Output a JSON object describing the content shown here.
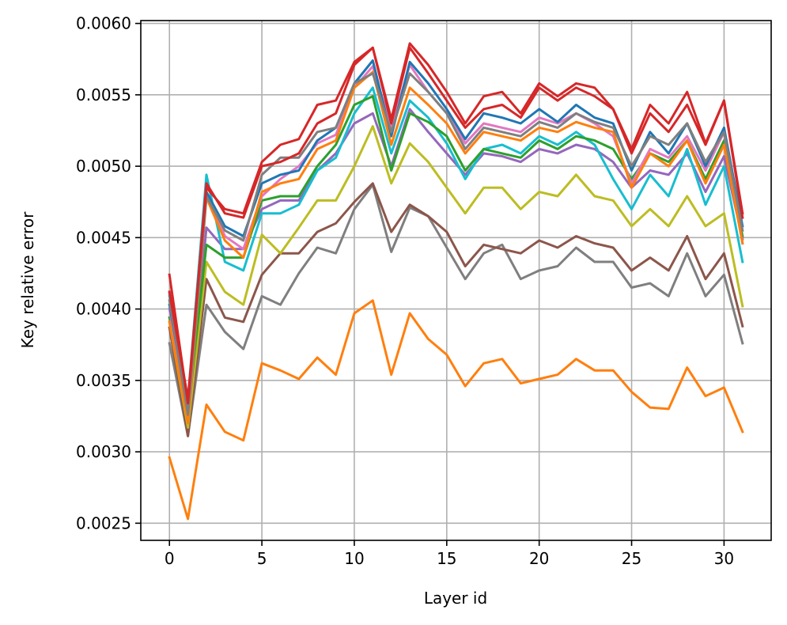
{
  "chart_data": {
    "type": "line",
    "xlabel": "Layer id",
    "ylabel": "Key relative error",
    "xlim": [
      -1.55,
      32.55
    ],
    "ylim": [
      0.00238,
      0.00602
    ],
    "xticks": [
      0,
      5,
      10,
      15,
      20,
      25,
      30
    ],
    "yticks": [
      0.0025,
      0.003,
      0.0035,
      0.004,
      0.0045,
      0.005,
      0.0055,
      0.006
    ],
    "ytick_labels": [
      "0.0025",
      "0.0030",
      "0.0035",
      "0.0040",
      "0.0045",
      "0.0050",
      "0.0055",
      "0.0060"
    ],
    "xtick_labels": [
      "0",
      "5",
      "10",
      "15",
      "20",
      "25",
      "30"
    ],
    "grid": true,
    "x": [
      0,
      1,
      2,
      3,
      4,
      5,
      6,
      7,
      8,
      9,
      10,
      11,
      12,
      13,
      14,
      15,
      16,
      17,
      18,
      19,
      20,
      21,
      22,
      23,
      24,
      25,
      26,
      27,
      28,
      29,
      30,
      31
    ],
    "series": [
      {
        "color": "#ff7f0e",
        "values": [
          0.00296,
          0.00253,
          0.00333,
          0.00314,
          0.00308,
          0.00362,
          0.00357,
          0.00351,
          0.00366,
          0.00354,
          0.00397,
          0.00406,
          0.00354,
          0.00397,
          0.00379,
          0.00368,
          0.00346,
          0.00362,
          0.00365,
          0.00348,
          0.00351,
          0.00354,
          0.00365,
          0.00357,
          0.00357,
          0.00342,
          0.00331,
          0.0033,
          0.00359,
          0.00339,
          0.00345,
          0.00314
        ]
      },
      {
        "color": "#7f7f7f",
        "values": [
          0.00376,
          0.00311,
          0.00403,
          0.00384,
          0.00372,
          0.00409,
          0.00403,
          0.00425,
          0.00443,
          0.00439,
          0.0047,
          0.00487,
          0.0044,
          0.00471,
          0.00465,
          0.00443,
          0.00421,
          0.00439,
          0.00445,
          0.00421,
          0.00427,
          0.0043,
          0.00443,
          0.00433,
          0.00433,
          0.00415,
          0.00418,
          0.00409,
          0.00439,
          0.00409,
          0.00424,
          0.00376
        ]
      },
      {
        "color": "#8c564b",
        "values": [
          0.00387,
          0.00311,
          0.00421,
          0.00394,
          0.00391,
          0.00424,
          0.00439,
          0.00439,
          0.00454,
          0.0046,
          0.00475,
          0.00488,
          0.00454,
          0.00473,
          0.00465,
          0.00454,
          0.0043,
          0.00445,
          0.00442,
          0.00439,
          0.00448,
          0.00443,
          0.00451,
          0.00446,
          0.00443,
          0.00427,
          0.00436,
          0.00427,
          0.00451,
          0.00421,
          0.00439,
          0.00388
        ]
      },
      {
        "color": "#bcbd22",
        "values": [
          0.00391,
          0.00317,
          0.00433,
          0.00412,
          0.00403,
          0.00452,
          0.00439,
          0.00457,
          0.00476,
          0.00476,
          0.005,
          0.00528,
          0.00488,
          0.00516,
          0.00503,
          0.00485,
          0.00467,
          0.00485,
          0.00485,
          0.0047,
          0.00482,
          0.00479,
          0.00494,
          0.00479,
          0.00476,
          0.00458,
          0.0047,
          0.00458,
          0.00479,
          0.00458,
          0.00467,
          0.00402
        ]
      },
      {
        "color": "#9467bd",
        "values": [
          0.00411,
          0.00322,
          0.00457,
          0.00442,
          0.00442,
          0.0047,
          0.00476,
          0.00476,
          0.00497,
          0.00509,
          0.0053,
          0.00537,
          0.005,
          0.0054,
          0.00524,
          0.00509,
          0.00494,
          0.00509,
          0.00507,
          0.00503,
          0.00512,
          0.00509,
          0.00515,
          0.00512,
          0.00503,
          0.00485,
          0.00497,
          0.00494,
          0.00509,
          0.00482,
          0.00507,
          0.00449
        ]
      },
      {
        "color": "#17becf",
        "values": [
          0.00409,
          0.00337,
          0.00494,
          0.00433,
          0.00427,
          0.00467,
          0.00467,
          0.00473,
          0.00497,
          0.00506,
          0.00537,
          0.00555,
          0.00509,
          0.00546,
          0.00534,
          0.00516,
          0.00491,
          0.00512,
          0.00515,
          0.00509,
          0.00521,
          0.00515,
          0.00524,
          0.00515,
          0.00491,
          0.0047,
          0.00494,
          0.00479,
          0.00512,
          0.00473,
          0.005,
          0.00433
        ]
      },
      {
        "color": "#2ca02c",
        "values": [
          0.00394,
          0.00328,
          0.00445,
          0.00436,
          0.00436,
          0.00476,
          0.00479,
          0.00479,
          0.005,
          0.00515,
          0.00543,
          0.00549,
          0.00497,
          0.00537,
          0.00531,
          0.00521,
          0.00497,
          0.00512,
          0.00509,
          0.00506,
          0.00518,
          0.00512,
          0.00521,
          0.00518,
          0.00512,
          0.00491,
          0.00509,
          0.00503,
          0.00518,
          0.00491,
          0.00518,
          0.00451
        ]
      },
      {
        "color": "#e377c2",
        "values": [
          0.004,
          0.00323,
          0.00482,
          0.00451,
          0.00442,
          0.00479,
          0.00491,
          0.005,
          0.00516,
          0.00522,
          0.00555,
          0.0057,
          0.00527,
          0.00571,
          0.00552,
          0.00537,
          0.00516,
          0.0053,
          0.00527,
          0.00524,
          0.00534,
          0.0053,
          0.00537,
          0.0053,
          0.00521,
          0.00488,
          0.00512,
          0.00506,
          0.00521,
          0.00497,
          0.00524,
          0.00446
        ]
      },
      {
        "color": "#1f77b4",
        "values": [
          0.00403,
          0.00329,
          0.00482,
          0.00458,
          0.00451,
          0.00488,
          0.00494,
          0.00497,
          0.00518,
          0.00527,
          0.00558,
          0.00574,
          0.00521,
          0.00573,
          0.00558,
          0.0054,
          0.00519,
          0.00537,
          0.00534,
          0.0053,
          0.0054,
          0.00531,
          0.00543,
          0.00534,
          0.0053,
          0.00497,
          0.00524,
          0.00509,
          0.0053,
          0.005,
          0.00527,
          0.00458
        ]
      },
      {
        "color": "#ff7f0e",
        "values": [
          0.00391,
          0.0032,
          0.00478,
          0.00448,
          0.00436,
          0.00482,
          0.00488,
          0.00491,
          0.00512,
          0.00518,
          0.00555,
          0.00566,
          0.00515,
          0.00555,
          0.00543,
          0.0053,
          0.00509,
          0.00524,
          0.00521,
          0.00518,
          0.00527,
          0.00524,
          0.00531,
          0.00527,
          0.00524,
          0.00485,
          0.00509,
          0.005,
          0.00518,
          0.00488,
          0.00515,
          0.00446
        ]
      },
      {
        "color": "#7f7f7f",
        "values": [
          0.00406,
          0.00326,
          0.00479,
          0.00455,
          0.00448,
          0.00494,
          0.00506,
          0.00506,
          0.00524,
          0.00527,
          0.00558,
          0.00565,
          0.00524,
          0.00565,
          0.00552,
          0.00537,
          0.00512,
          0.00527,
          0.00524,
          0.00521,
          0.00531,
          0.00527,
          0.00537,
          0.00531,
          0.00527,
          0.005,
          0.00521,
          0.00515,
          0.0053,
          0.00503,
          0.00524,
          0.00455
        ]
      },
      {
        "color": "#d62728",
        "values": [
          0.00424,
          0.00334,
          0.00488,
          0.00467,
          0.00464,
          0.005,
          0.00503,
          0.00509,
          0.0053,
          0.00537,
          0.00571,
          0.00583,
          0.0053,
          0.00583,
          0.00565,
          0.00546,
          0.00527,
          0.0054,
          0.00543,
          0.00534,
          0.00555,
          0.00546,
          0.00555,
          0.00549,
          0.0054,
          0.00509,
          0.00537,
          0.00524,
          0.00543,
          0.00515,
          0.00546,
          0.00467
        ]
      },
      {
        "color": "#d62728",
        "values": [
          0.00412,
          0.00337,
          0.00485,
          0.0047,
          0.00467,
          0.00503,
          0.00515,
          0.00519,
          0.00543,
          0.00546,
          0.00573,
          0.00583,
          0.00533,
          0.00586,
          0.00571,
          0.00552,
          0.0053,
          0.00549,
          0.00552,
          0.00537,
          0.00558,
          0.00549,
          0.00558,
          0.00555,
          0.0054,
          0.00512,
          0.00543,
          0.0053,
          0.00552,
          0.00516,
          0.00546,
          0.00464
        ]
      }
    ]
  }
}
